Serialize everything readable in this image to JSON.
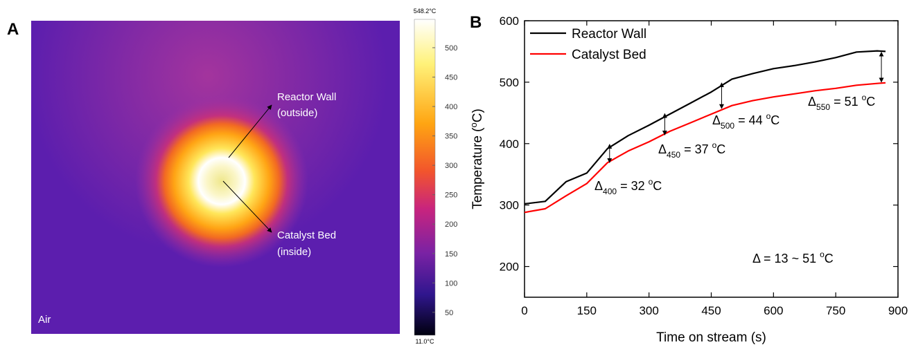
{
  "thermal_image": {
    "panel_label": "A",
    "wall_label": [
      "Reactor Wall",
      "(outside)"
    ],
    "bed_label": [
      "Catalyst Bed",
      "(inside)"
    ],
    "air_label": "Air",
    "colorbar": {
      "max": {
        "value": 548.2,
        "label": "548.2°C"
      },
      "min": {
        "value": 11.0,
        "label": "11.0°C"
      },
      "ticks": [
        50,
        100,
        150,
        200,
        250,
        300,
        350,
        400,
        450,
        500
      ]
    }
  },
  "chart_data": {
    "type": "line",
    "panel_label": "B",
    "x_label": "Time on stream (s)",
    "y_label": {
      "start": "Temperature (",
      "superscript": "o",
      "end": "C)"
    },
    "x": [
      0,
      50,
      100,
      150,
      200,
      250,
      300,
      350,
      400,
      450,
      500,
      550,
      600,
      650,
      700,
      750,
      800,
      850,
      870
    ],
    "series": [
      {
        "name": "Reactor Wall",
        "color": "#000000",
        "values": [
          302,
          306,
          338,
          352,
          392,
          413,
          430,
          448,
          466,
          484,
          505,
          514,
          522,
          527,
          533,
          540,
          549,
          551,
          550
        ]
      },
      {
        "name": "Catalyst Bed",
        "color": "#ff0000",
        "values": [
          288,
          294,
          315,
          335,
          369,
          388,
          403,
          420,
          434,
          448,
          462,
          470,
          476,
          481,
          486,
          490,
          495,
          498,
          499
        ]
      }
    ],
    "xlim": [
      0,
      900
    ],
    "ylim": [
      150,
      600
    ],
    "xticks": [
      0,
      150,
      300,
      450,
      600,
      750,
      900
    ],
    "yticks": [
      200,
      300,
      400,
      500,
      600
    ],
    "legend": "upper left",
    "arrows": [
      {
        "x": 205,
        "top": 400,
        "bottom": 368
      },
      {
        "x": 338,
        "top": 450,
        "bottom": 413
      },
      {
        "x": 475,
        "top": 500,
        "bottom": 456
      },
      {
        "x": 860,
        "top": 550,
        "bottom": 499
      }
    ],
    "annotations": [
      {
        "symbol": "Δ",
        "subscript": "400",
        "text": " = 32 ",
        "superscript": "o",
        "unit": "C"
      },
      {
        "symbol": "Δ",
        "subscript": "450",
        "text": " = 37 ",
        "superscript": "o",
        "unit": "C"
      },
      {
        "symbol": "Δ",
        "subscript": "500",
        "text": " = 44 ",
        "superscript": "o",
        "unit": "C"
      },
      {
        "symbol": "Δ",
        "subscript": "550",
        "text": " = 51 ",
        "superscript": "o",
        "unit": "C"
      },
      {
        "symbol": "Δ",
        "text": " = 13 ~ 51 ",
        "superscript": "o",
        "unit": "C"
      }
    ]
  }
}
